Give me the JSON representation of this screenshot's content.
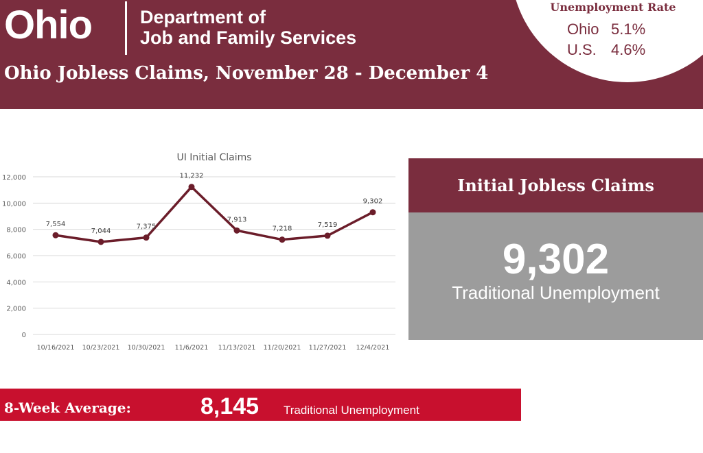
{
  "header": {
    "state_logo": "Ohio",
    "department_line1": "Department of",
    "department_line2": "Job and Family Services",
    "report_title": "Ohio Jobless Claims, November 28 - December 4"
  },
  "unemployment_rate": {
    "title": "Unemployment Rate",
    "rows": [
      {
        "name": "Ohio",
        "value": "5.1%"
      },
      {
        "name": "U.S.",
        "value": "4.6%"
      }
    ]
  },
  "initial_claims_panel": {
    "title": "Initial Jobless Claims",
    "value": "9,302",
    "caption": "Traditional Unemployment"
  },
  "eight_week_average": {
    "label": "8-Week Average:",
    "value": "8,145",
    "caption": "Traditional Unemployment"
  },
  "colors": {
    "brand_maroon": "#7a2d3e",
    "line_series": "#6b1d2a",
    "panel_gray": "#9c9c9c",
    "average_red": "#c8102e"
  },
  "chart_data": {
    "type": "line",
    "title": "UI Initial Claims",
    "xlabel": "",
    "ylabel": "",
    "categories": [
      "10/16/2021",
      "10/23/2021",
      "10/30/2021",
      "11/6/2021",
      "11/13/2021",
      "11/20/2021",
      "11/27/2021",
      "12/4/2021"
    ],
    "series": [
      {
        "values": [
          7554,
          7044,
          7375,
          11232,
          7913,
          7218,
          7519,
          9302
        ],
        "data_labels": [
          "7,554",
          "7,044",
          "7,375",
          "11,232",
          "7,913",
          "7,218",
          "7,519",
          "9,302"
        ]
      }
    ],
    "y_ticks": [
      0,
      2000,
      4000,
      6000,
      8000,
      10000,
      12000
    ],
    "y_tick_labels": [
      "0",
      "2,000",
      "4,000",
      "6,000",
      "8,000",
      "10,000",
      "12,000"
    ],
    "ylim": [
      0,
      12000
    ],
    "grid": true,
    "legend": "none"
  }
}
